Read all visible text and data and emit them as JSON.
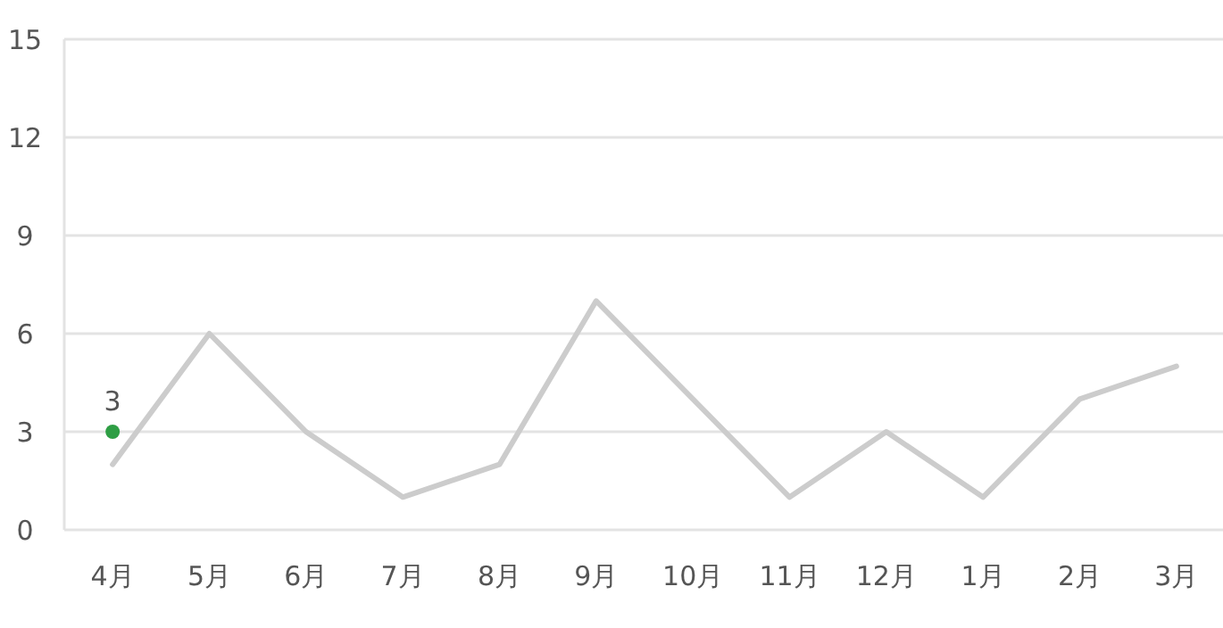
{
  "chart_data": {
    "type": "line",
    "categories": [
      "4月",
      "5月",
      "6月",
      "7月",
      "8月",
      "9月",
      "10月",
      "11月",
      "12月",
      "1月",
      "2月",
      "3月"
    ],
    "series": [
      {
        "color": "#cccccc",
        "values": [
          2,
          6,
          3,
          1,
          2,
          7,
          4,
          1,
          3,
          1,
          4,
          5
        ],
        "marker": "none"
      },
      {
        "type": "scatter",
        "color": "#2e9e44",
        "x": [
          "4月"
        ],
        "values": [
          3
        ],
        "value_labels": [
          "3"
        ],
        "marker": "circle"
      }
    ],
    "ylim": [
      0,
      15
    ],
    "yticks": [
      0,
      3,
      6,
      9,
      12,
      15
    ],
    "grid": "y"
  }
}
